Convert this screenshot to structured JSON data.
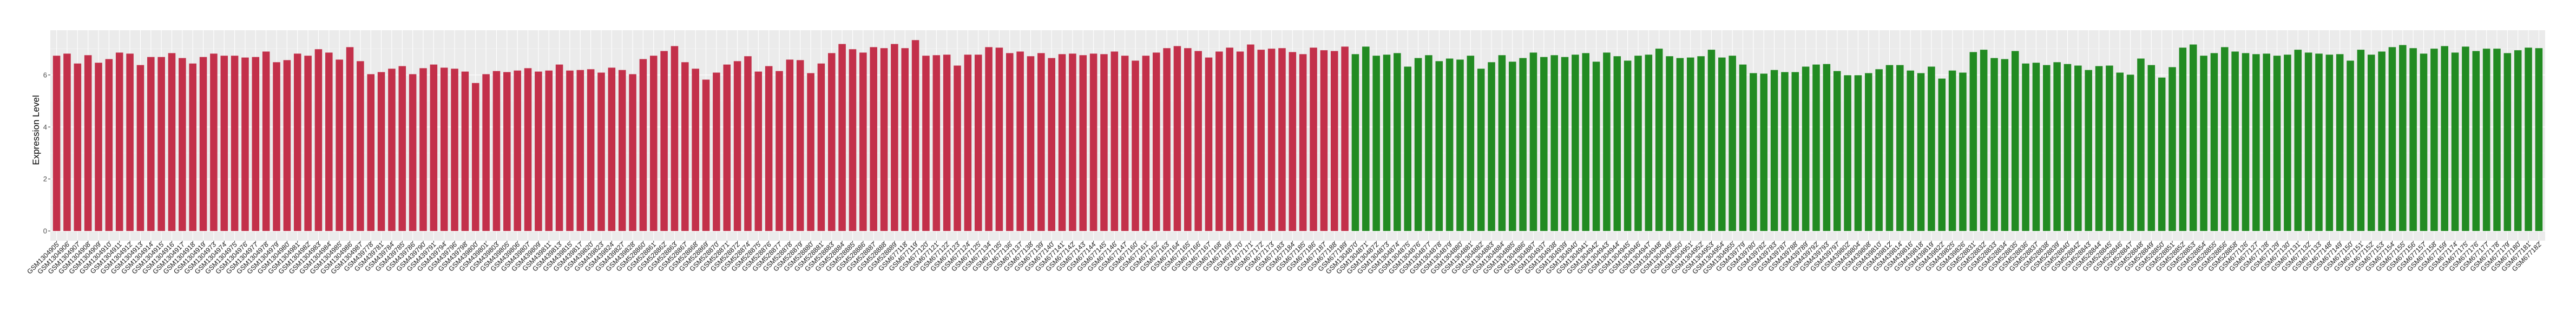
{
  "chart_data": {
    "type": "bar",
    "title": "",
    "xlabel": "",
    "ylabel": "Expression Level",
    "ylim": [
      0,
      7.72
    ],
    "yticks": [
      0,
      2,
      4,
      6
    ],
    "grid": true,
    "legend": "none",
    "panel_background": "#EBEBEB",
    "groups": [
      {
        "color": "#C3304A",
        "categories": [
          "GSM1304905",
          "GSM1304906",
          "GSM1304907",
          "GSM1304908",
          "GSM1304909",
          "GSM1304910",
          "GSM1304911",
          "GSM1304912",
          "GSM1304913",
          "GSM1304914",
          "GSM1304915",
          "GSM1304916",
          "GSM1304917",
          "GSM1304918",
          "GSM1304919",
          "GSM1304973",
          "GSM1304974",
          "GSM1304975",
          "GSM1304976",
          "GSM1304977",
          "GSM1304978",
          "GSM1304979",
          "GSM1304980",
          "GSM1304981",
          "GSM1304982",
          "GSM1304983",
          "GSM1304984",
          "GSM1304985",
          "GSM1304986",
          "GSM1304987",
          "GSM439778",
          "GSM439781",
          "GSM439784",
          "GSM439785",
          "GSM439786",
          "GSM439790",
          "GSM439791",
          "GSM439794",
          "GSM439796",
          "GSM439798",
          "GSM439800",
          "GSM439801",
          "GSM439803",
          "GSM439805",
          "GSM439806",
          "GSM439807",
          "GSM439809",
          "GSM439811",
          "GSM439813",
          "GSM439815",
          "GSM439817",
          "GSM439820",
          "GSM439823",
          "GSM439824",
          "GSM439827",
          "GSM439828",
          "GSM528860",
          "GSM528861",
          "GSM528862",
          "GSM528863",
          "GSM528867",
          "GSM528868",
          "GSM528869",
          "GSM528870",
          "GSM528871",
          "GSM528872",
          "GSM528874",
          "GSM528875",
          "GSM528876",
          "GSM528877",
          "GSM528878",
          "GSM528879",
          "GSM528880",
          "GSM528881",
          "GSM528883",
          "GSM528884",
          "GSM528885",
          "GSM528886",
          "GSM528887",
          "GSM528888",
          "GSM528889",
          "GSM677118",
          "GSM677119",
          "GSM677120",
          "GSM677121",
          "GSM677122",
          "GSM677123",
          "GSM677124",
          "GSM677125",
          "GSM677134",
          "GSM677135",
          "GSM677136",
          "GSM677137",
          "GSM677138",
          "GSM677139",
          "GSM677140",
          "GSM677141",
          "GSM677142",
          "GSM677143",
          "GSM677144",
          "GSM677145",
          "GSM677146",
          "GSM677147",
          "GSM677160",
          "GSM677161",
          "GSM677162",
          "GSM677163",
          "GSM677164",
          "GSM677165",
          "GSM677166",
          "GSM677167",
          "GSM677168",
          "GSM677169",
          "GSM677170",
          "GSM677171",
          "GSM677172",
          "GSM677173",
          "GSM677183",
          "GSM677184",
          "GSM677185",
          "GSM677186",
          "GSM677187",
          "GSM677188",
          "GSM677189"
        ],
        "values": [
          6.74,
          6.82,
          6.44,
          6.76,
          6.47,
          6.61,
          6.86,
          6.82,
          6.38,
          6.69,
          6.69,
          6.84,
          6.65,
          6.44,
          6.69,
          6.82,
          6.74,
          6.74,
          6.67,
          6.69,
          6.9,
          6.49,
          6.57,
          6.82,
          6.74,
          6.99,
          6.86,
          6.59,
          7.07,
          6.53,
          6.03,
          6.11,
          6.24,
          6.34,
          6.03,
          6.26,
          6.4,
          6.28,
          6.24,
          6.13,
          5.69,
          6.03,
          6.15,
          6.11,
          6.17,
          6.26,
          6.13,
          6.17,
          6.4,
          6.17,
          6.19,
          6.22,
          6.09,
          6.28,
          6.19,
          6.03,
          6.61,
          6.74,
          6.92,
          7.11,
          6.49,
          6.24,
          5.82,
          6.09,
          6.4,
          6.53,
          6.72,
          6.13,
          6.34,
          6.15,
          6.59,
          6.57,
          6.07,
          6.44,
          6.84,
          7.19,
          6.99,
          6.86,
          7.07,
          7.03,
          7.19,
          7.03,
          7.34,
          6.74,
          6.76,
          6.78,
          6.36,
          6.78,
          6.78,
          7.07,
          7.05,
          6.84,
          6.9,
          6.72,
          6.84,
          6.65,
          6.8,
          6.82,
          6.76,
          6.82,
          6.8,
          6.9,
          6.74,
          6.55,
          6.74,
          6.86,
          7.03,
          7.11,
          7.03,
          6.92,
          6.67,
          6.9,
          7.05,
          6.9,
          7.17,
          6.97,
          7.01,
          7.03,
          6.88,
          6.8,
          7.05,
          6.95,
          6.92,
          7.09
        ]
      },
      {
        "color": "#228B22",
        "categories": [
          "GSM1304870",
          "GSM1304871",
          "GSM1304872",
          "GSM1304873",
          "GSM1304874",
          "GSM1304875",
          "GSM1304876",
          "GSM1304877",
          "GSM1304878",
          "GSM1304879",
          "GSM1304880",
          "GSM1304881",
          "GSM1304882",
          "GSM1304883",
          "GSM1304884",
          "GSM1304885",
          "GSM1304886",
          "GSM1304887",
          "GSM1304937",
          "GSM1304938",
          "GSM1304939",
          "GSM1304940",
          "GSM1304941",
          "GSM1304942",
          "GSM1304943",
          "GSM1304944",
          "GSM1304945",
          "GSM1304946",
          "GSM1304947",
          "GSM1304948",
          "GSM1304949",
          "GSM1304950",
          "GSM1304951",
          "GSM1304952",
          "GSM1304953",
          "GSM1304954",
          "GSM1304955",
          "GSM439779",
          "GSM439780",
          "GSM439782",
          "GSM439783",
          "GSM439787",
          "GSM439788",
          "GSM439789",
          "GSM439792",
          "GSM439793",
          "GSM439797",
          "GSM439802",
          "GSM439804",
          "GSM439808",
          "GSM439810",
          "GSM439812",
          "GSM439814",
          "GSM439816",
          "GSM439818",
          "GSM439819",
          "GSM439822",
          "GSM439825",
          "GSM439826",
          "GSM528831",
          "GSM528832",
          "GSM528833",
          "GSM528834",
          "GSM528835",
          "GSM528836",
          "GSM528837",
          "GSM528838",
          "GSM528839",
          "GSM528840",
          "GSM528842",
          "GSM528843",
          "GSM528844",
          "GSM528845",
          "GSM528846",
          "GSM528847",
          "GSM528848",
          "GSM528849",
          "GSM528850",
          "GSM528851",
          "GSM528852",
          "GSM528853",
          "GSM528854",
          "GSM528855",
          "GSM528856",
          "GSM528858",
          "GSM677126",
          "GSM677127",
          "GSM677128",
          "GSM677129",
          "GSM677130",
          "GSM677131",
          "GSM677132",
          "GSM677133",
          "GSM677148",
          "GSM677149",
          "GSM677150",
          "GSM677151",
          "GSM677152",
          "GSM677153",
          "GSM677154",
          "GSM677155",
          "GSM677156",
          "GSM677157",
          "GSM677158",
          "GSM677159",
          "GSM677174",
          "GSM677175",
          "GSM677176",
          "GSM677177",
          "GSM677178",
          "GSM677179",
          "GSM677180",
          "GSM677181",
          "GSM677182"
        ],
        "values": [
          6.8,
          7.09,
          6.74,
          6.78,
          6.84,
          6.32,
          6.65,
          6.76,
          6.53,
          6.63,
          6.59,
          6.74,
          6.24,
          6.49,
          6.76,
          6.51,
          6.65,
          6.86,
          6.69,
          6.76,
          6.69,
          6.78,
          6.84,
          6.51,
          6.86,
          6.72,
          6.55,
          6.74,
          6.78,
          7.01,
          6.72,
          6.65,
          6.67,
          6.72,
          6.97,
          6.67,
          6.74,
          6.4,
          6.07,
          6.05,
          6.19,
          6.11,
          6.11,
          6.32,
          6.4,
          6.42,
          6.15,
          5.99,
          5.99,
          6.07,
          6.22,
          6.38,
          6.38,
          6.17,
          6.07,
          6.32,
          5.86,
          6.17,
          6.09,
          6.88,
          6.97,
          6.65,
          6.61,
          6.92,
          6.44,
          6.47,
          6.38,
          6.49,
          6.42,
          6.36,
          6.19,
          6.34,
          6.36,
          6.09,
          6.01,
          6.63,
          6.38,
          5.9,
          6.3,
          7.05,
          7.17,
          6.74,
          6.84,
          7.07,
          6.9,
          6.84,
          6.8,
          6.82,
          6.74,
          6.78,
          6.97,
          6.86,
          6.82,
          6.78,
          6.8,
          6.55,
          6.97,
          6.78,
          6.9,
          7.07,
          7.15,
          7.03,
          6.82,
          7.01,
          7.11,
          6.86,
          7.09,
          6.92,
          7.01,
          7.01,
          6.84,
          6.95,
          7.05,
          7.03
        ]
      }
    ]
  }
}
